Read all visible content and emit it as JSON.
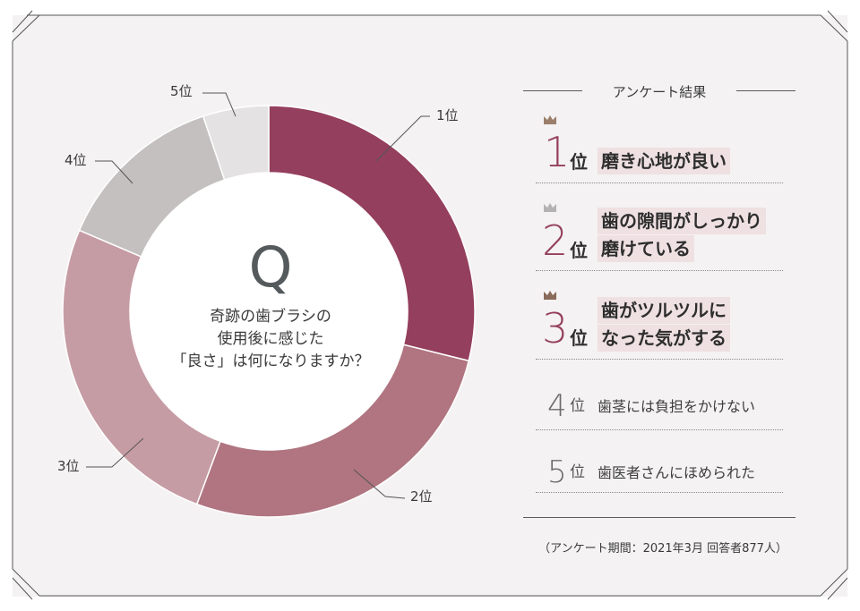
{
  "chart_data": {
    "type": "pie",
    "donut": true,
    "categories": [
      "1位",
      "2位",
      "3位",
      "4位",
      "5位"
    ],
    "values": [
      28,
      26,
      25,
      13,
      5
    ],
    "colors": [
      "#943f5d",
      "#b07580",
      "#c69ca4",
      "#c4c0c0",
      "#e4e2e2"
    ],
    "center_text": {
      "letter": "Q",
      "lines": [
        "奇跡の歯ブラシの",
        "使用後に感じた",
        "「良さ」は何になりますか？"
      ]
    }
  },
  "panel": {
    "title": "アンケート結果",
    "ranks": [
      {
        "num": "1",
        "suffix": "位",
        "lines": [
          "磨き心地が良い"
        ],
        "crown": "gold"
      },
      {
        "num": "2",
        "suffix": "位",
        "lines": [
          "歯の隙間がしっかり",
          "磨けている"
        ],
        "crown": "silver"
      },
      {
        "num": "3",
        "suffix": "位",
        "lines": [
          "歯がツルツルに",
          "なった気がする"
        ],
        "crown": "bronze"
      },
      {
        "num": "4",
        "suffix": "位",
        "lines": [
          "歯茎には負担をかけない"
        ]
      },
      {
        "num": "5",
        "suffix": "位",
        "lines": [
          "歯医者さんにほめられた"
        ]
      }
    ],
    "footnote": "（アンケート期間：2021年3月 回答者877人）"
  },
  "colors": {
    "accent": "#943f5d",
    "crown_gold": "#9c7f6a",
    "crown_silver": "#b4b2b2",
    "crown_bronze": "#8a6a5a",
    "card_bg": "#f4f2f2"
  }
}
